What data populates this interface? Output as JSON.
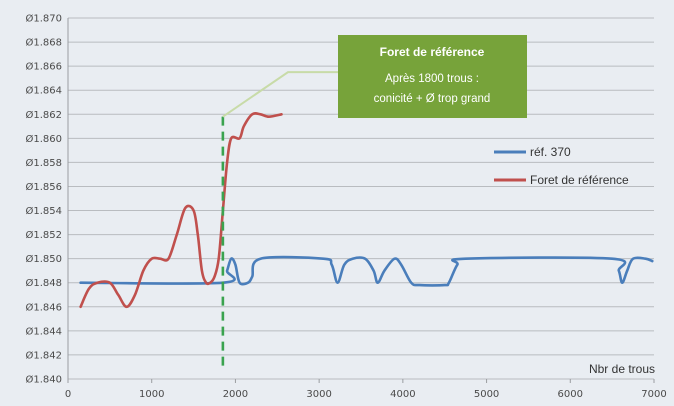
{
  "chart_data": {
    "type": "line",
    "xlabel": "Nbr de trous",
    "xlim": [
      0,
      7000
    ],
    "ylim": [
      1.84,
      1.87
    ],
    "x_ticks": [
      0,
      1000,
      2000,
      3000,
      4000,
      5000,
      6000,
      7000
    ],
    "y_ticks": [
      1.84,
      1.842,
      1.844,
      1.846,
      1.848,
      1.85,
      1.852,
      1.854,
      1.856,
      1.858,
      1.86,
      1.862,
      1.864,
      1.866,
      1.868,
      1.87
    ],
    "y_tick_prefix": "Ø",
    "grid": "horizontal",
    "legend_placement": "right",
    "series": [
      {
        "name": "réf. 370",
        "color": "#4a7ebb",
        "points": [
          [
            150,
            1.848
          ],
          [
            1850,
            1.848
          ],
          [
            1900,
            1.849
          ],
          [
            1950,
            1.85
          ],
          [
            2000,
            1.8495
          ],
          [
            2050,
            1.848
          ],
          [
            2150,
            1.848
          ],
          [
            2200,
            1.8485
          ],
          [
            2300,
            1.85
          ],
          [
            3050,
            1.85
          ],
          [
            3150,
            1.8495
          ],
          [
            3220,
            1.848
          ],
          [
            3300,
            1.8495
          ],
          [
            3400,
            1.85
          ],
          [
            3550,
            1.85
          ],
          [
            3650,
            1.849
          ],
          [
            3700,
            1.848
          ],
          [
            3780,
            1.849
          ],
          [
            3900,
            1.85
          ],
          [
            3980,
            1.8495
          ],
          [
            4100,
            1.848
          ],
          [
            4200,
            1.8478
          ],
          [
            4500,
            1.8478
          ],
          [
            4550,
            1.848
          ],
          [
            4650,
            1.8495
          ],
          [
            4750,
            1.85
          ],
          [
            6500,
            1.85
          ],
          [
            6580,
            1.849
          ],
          [
            6620,
            1.848
          ],
          [
            6680,
            1.849
          ],
          [
            6750,
            1.85
          ],
          [
            6900,
            1.85
          ],
          [
            6980,
            1.8498
          ]
        ]
      },
      {
        "name": "Foret de référence",
        "color": "#c0504d",
        "points": [
          [
            150,
            1.846
          ],
          [
            250,
            1.8475
          ],
          [
            350,
            1.848
          ],
          [
            500,
            1.848
          ],
          [
            600,
            1.847
          ],
          [
            700,
            1.846
          ],
          [
            800,
            1.847
          ],
          [
            900,
            1.849
          ],
          [
            1000,
            1.85
          ],
          [
            1100,
            1.85
          ],
          [
            1200,
            1.85
          ],
          [
            1300,
            1.852
          ],
          [
            1400,
            1.8542
          ],
          [
            1500,
            1.854
          ],
          [
            1550,
            1.852
          ],
          [
            1600,
            1.849
          ],
          [
            1650,
            1.848
          ],
          [
            1700,
            1.848
          ],
          [
            1750,
            1.8485
          ],
          [
            1800,
            1.85
          ],
          [
            1850,
            1.854
          ],
          [
            1900,
            1.858
          ],
          [
            1950,
            1.86
          ],
          [
            2050,
            1.86
          ],
          [
            2100,
            1.861
          ],
          [
            2200,
            1.862
          ],
          [
            2300,
            1.862
          ],
          [
            2400,
            1.8618
          ],
          [
            2550,
            1.862
          ]
        ]
      }
    ],
    "annotation": {
      "title": "Foret de référence",
      "lines": [
        "Après 1800 trous :",
        "conicité + Ø trop grand"
      ],
      "box_color": "#77a33a",
      "connector_color": "#c8dba8",
      "marker_x": 1850,
      "marker_color": "#3aa34f"
    }
  }
}
